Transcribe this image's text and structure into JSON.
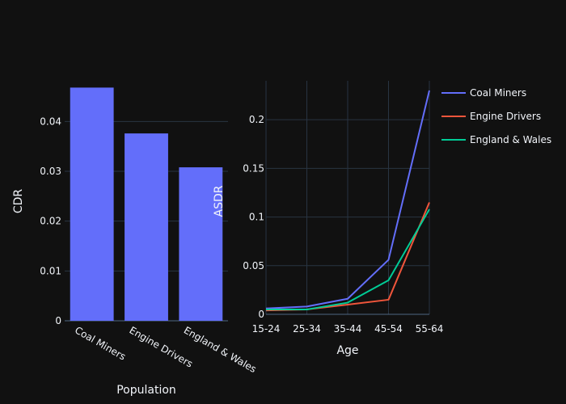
{
  "chart_data": [
    {
      "type": "bar",
      "categories": [
        "Coal Miners",
        "Engine Drivers",
        "England & Wales"
      ],
      "values": [
        0.0468,
        0.0376,
        0.0308
      ],
      "xlabel": "Population",
      "ylabel": "CDR",
      "ylim": [
        0,
        0.048
      ],
      "yticks": [
        "0",
        "0.01",
        "0.02",
        "0.03",
        "0.04"
      ],
      "color": "#636efa",
      "grid": true
    },
    {
      "type": "line",
      "x": [
        "15-24",
        "25-34",
        "35-44",
        "45-54",
        "55-64"
      ],
      "series": [
        {
          "name": "Coal Miners",
          "values": [
            0.006,
            0.008,
            0.016,
            0.056,
            0.23
          ],
          "color": "#636efa"
        },
        {
          "name": "Engine Drivers",
          "values": [
            0.004,
            0.005,
            0.01,
            0.015,
            0.115
          ],
          "color": "#ef553b"
        },
        {
          "name": "England & Wales",
          "values": [
            0.005,
            0.005,
            0.012,
            0.035,
            0.108
          ],
          "color": "#00cc96"
        }
      ],
      "xlabel": "Age",
      "ylabel": "ASDR",
      "ylim": [
        0,
        0.24
      ],
      "yticks": [
        "0",
        "0.05",
        "0.1",
        "0.15",
        "0.2"
      ],
      "grid": true,
      "legend_position": "top-right"
    }
  ]
}
